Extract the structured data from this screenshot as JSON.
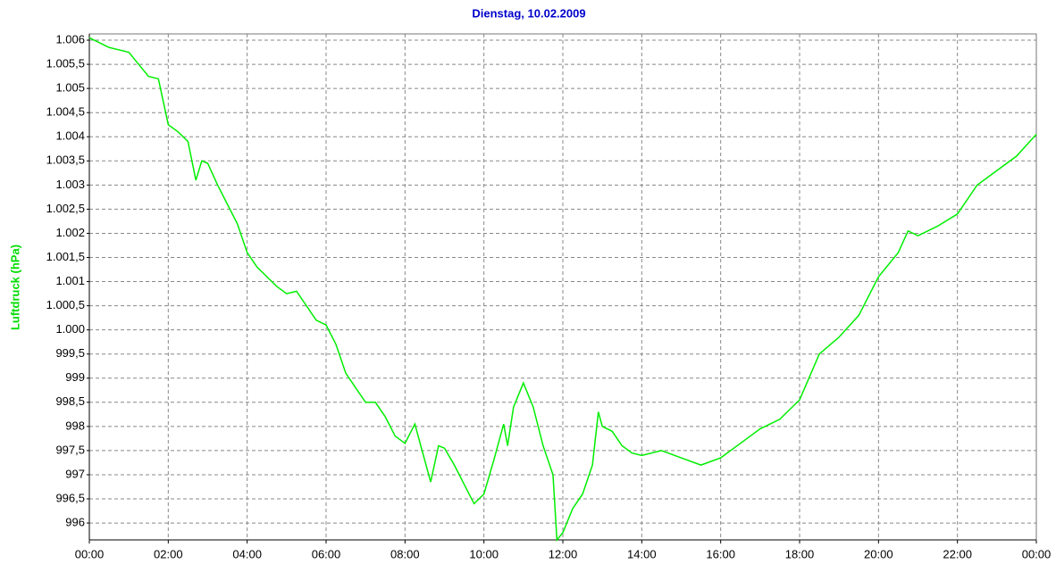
{
  "chart_data": {
    "type": "line",
    "title": "Dienstag, 10.02.2009",
    "y_label": "Luftdruck (hPa)",
    "x": [
      0,
      0.5,
      1,
      1.25,
      1.5,
      1.75,
      2,
      2.25,
      2.5,
      2.7,
      2.85,
      3,
      3.25,
      3.5,
      3.75,
      4,
      4.25,
      4.5,
      4.75,
      5,
      5.25,
      5.5,
      5.75,
      6,
      6.25,
      6.5,
      6.75,
      7,
      7.25,
      7.5,
      7.75,
      8,
      8.25,
      8.5,
      8.65,
      8.85,
      9,
      9.25,
      9.5,
      9.75,
      10,
      10.25,
      10.5,
      10.6,
      10.75,
      11,
      11.25,
      11.5,
      11.75,
      11.85,
      12,
      12.25,
      12.5,
      12.75,
      12.9,
      13,
      13.25,
      13.5,
      13.75,
      14,
      14.5,
      15,
      15.5,
      16,
      16.5,
      17,
      17.5,
      18,
      18.5,
      19,
      19.5,
      20,
      20.5,
      20.75,
      21,
      21.5,
      22,
      22.5,
      23,
      23.5,
      24
    ],
    "series": [
      {
        "name": "Luftdruck",
        "color": "#00ee00",
        "values": [
          1006.05,
          1005.85,
          1005.75,
          1005.5,
          1005.25,
          1005.2,
          1004.25,
          1004.1,
          1003.9,
          1003.1,
          1003.5,
          1003.45,
          1003.0,
          1002.6,
          1002.2,
          1001.6,
          1001.3,
          1001.1,
          1000.9,
          1000.75,
          1000.8,
          1000.5,
          1000.2,
          1000.1,
          999.7,
          999.1,
          998.8,
          998.5,
          998.5,
          998.2,
          997.8,
          997.65,
          998.05,
          997.3,
          996.85,
          997.6,
          997.55,
          997.2,
          996.8,
          996.4,
          996.6,
          997.3,
          998.05,
          997.6,
          998.4,
          998.9,
          998.4,
          997.6,
          997.0,
          995.65,
          995.8,
          996.3,
          996.6,
          997.2,
          998.3,
          998.0,
          997.9,
          997.6,
          997.45,
          997.4,
          997.5,
          997.35,
          997.2,
          997.35,
          997.65,
          997.95,
          998.15,
          998.55,
          999.5,
          999.85,
          1000.3,
          1001.1,
          1001.6,
          1002.05,
          1001.95,
          1002.15,
          1002.4,
          1003.0,
          1003.3,
          1003.6,
          1004.05
        ]
      }
    ],
    "xlim": [
      0,
      24
    ],
    "xticks": [
      {
        "value": 0,
        "label": "00:00"
      },
      {
        "value": 2,
        "label": "02:00"
      },
      {
        "value": 4,
        "label": "04:00"
      },
      {
        "value": 6,
        "label": "06:00"
      },
      {
        "value": 8,
        "label": "08:00"
      },
      {
        "value": 10,
        "label": "10:00"
      },
      {
        "value": 12,
        "label": "12:00"
      },
      {
        "value": 14,
        "label": "14:00"
      },
      {
        "value": 16,
        "label": "16:00"
      },
      {
        "value": 18,
        "label": "18:00"
      },
      {
        "value": 20,
        "label": "20:00"
      },
      {
        "value": 22,
        "label": "22:00"
      },
      {
        "value": 24,
        "label": "00:00"
      }
    ],
    "ylim": [
      995.65,
      1006.13
    ],
    "yticks": [
      {
        "value": 1006,
        "label": "1.006"
      },
      {
        "value": 1005.5,
        "label": "1.005,5"
      },
      {
        "value": 1005,
        "label": "1.005"
      },
      {
        "value": 1004.5,
        "label": "1.004,5"
      },
      {
        "value": 1004,
        "label": "1.004"
      },
      {
        "value": 1003.5,
        "label": "1.003,5"
      },
      {
        "value": 1003,
        "label": "1.003"
      },
      {
        "value": 1002.5,
        "label": "1.002,5"
      },
      {
        "value": 1002,
        "label": "1.002"
      },
      {
        "value": 1001.5,
        "label": "1.001,5"
      },
      {
        "value": 1001,
        "label": "1.001"
      },
      {
        "value": 1000.5,
        "label": "1.000,5"
      },
      {
        "value": 1000,
        "label": "1.000"
      },
      {
        "value": 999.5,
        "label": "999,5"
      },
      999,
      {
        "value": 998.5,
        "label": "998,5"
      },
      998,
      {
        "value": 997.5,
        "label": "997,5"
      },
      997,
      {
        "value": 996.5,
        "label": "996,5"
      },
      996
    ],
    "grid": true
  }
}
